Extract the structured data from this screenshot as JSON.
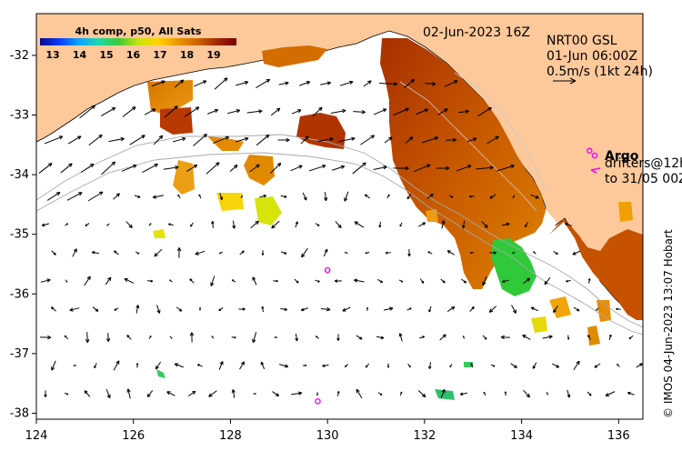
{
  "map": {
    "colorbar": {
      "title": "4h comp, p50, All Sats",
      "ticks": [
        "13",
        "14",
        "15",
        "16",
        "17",
        "18",
        "19"
      ],
      "stops": [
        "#08088c",
        "#0b3cff",
        "#0aa5ff",
        "#1fd9a8",
        "#3ec935",
        "#c8e40c",
        "#ffd400",
        "#ee9700",
        "#cf6500",
        "#a22a00",
        "#7a0000"
      ]
    },
    "timestamp": "02-Jun-2023 16Z",
    "current_source": "NRT00 GSL",
    "current_time": "01-Jun 06:00Z",
    "current_scale": "0.5m/s (1kt 24h)",
    "argo_label": "Argo",
    "drifter_label": "drifters@12h",
    "drifter_range": "to 31/05 00Z",
    "credit": "© IMOS 04-Jun-2023 13:07 Hobart",
    "x_ticks": [
      {
        "value": 124,
        "label": "124"
      },
      {
        "value": 126,
        "label": "126"
      },
      {
        "value": 128,
        "label": "128"
      },
      {
        "value": 130,
        "label": "130"
      },
      {
        "value": 132,
        "label": "132"
      },
      {
        "value": 134,
        "label": "134"
      },
      {
        "value": 136,
        "label": "136"
      }
    ],
    "y_ticks": [
      {
        "value": -32,
        "label": "-32"
      },
      {
        "value": -33,
        "label": "-33"
      },
      {
        "value": -34,
        "label": "-34"
      },
      {
        "value": -35,
        "label": "-35"
      },
      {
        "value": -36,
        "label": "-36"
      },
      {
        "value": -37,
        "label": "-37"
      },
      {
        "value": -38,
        "label": "-38"
      }
    ],
    "xlim": [
      124,
      136.5
    ],
    "ylim": [
      -38.1,
      -31.3
    ],
    "land_color": "#fdc99b",
    "argo_color": "#ff00ff",
    "argo_floats": [
      {
        "lon": 130.0,
        "lat": -35.6
      },
      {
        "lon": 129.8,
        "lat": -37.8
      },
      {
        "lon": 135.4,
        "lat": -33.6
      }
    ]
  }
}
